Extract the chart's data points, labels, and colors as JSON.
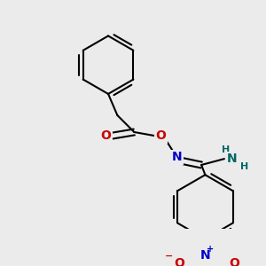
{
  "background_color": "#ebebeb",
  "bond_color": "#000000",
  "bond_width": 1.5,
  "atom_colors": {
    "O": "#cc0000",
    "N": "#0000cc",
    "N_amino": "#006666",
    "C": "#000000"
  },
  "font_size_atom": 10,
  "font_size_h": 8,
  "fig_size": [
    3.0,
    3.0
  ],
  "dpi": 100
}
